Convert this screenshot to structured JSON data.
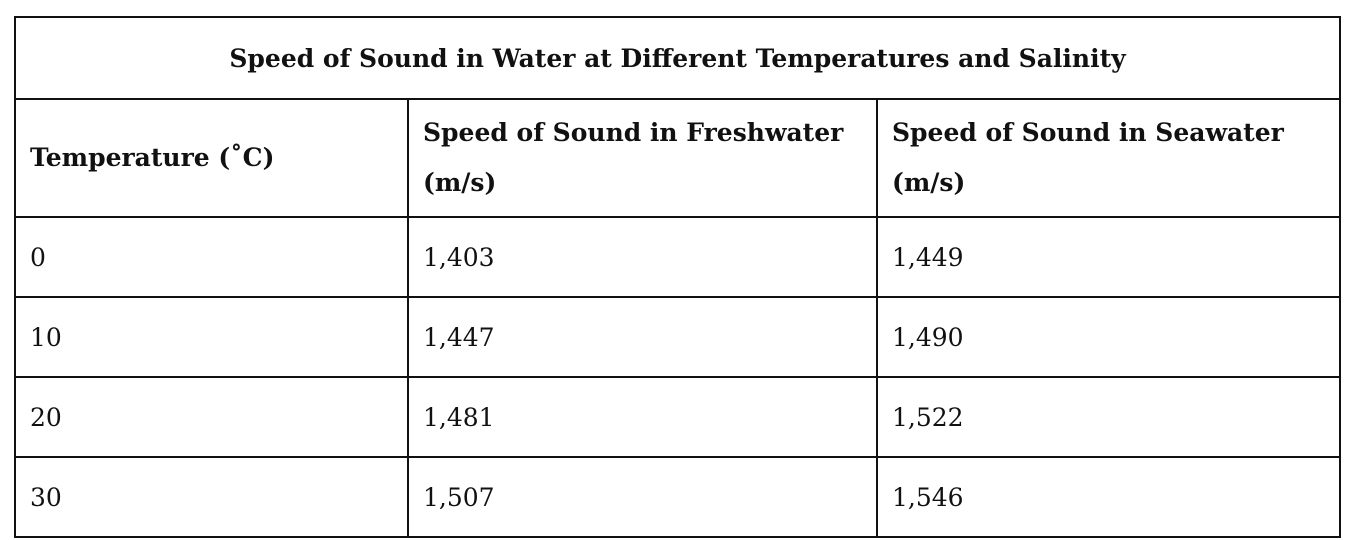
{
  "chart_data": {
    "type": "table",
    "title": "Speed of Sound in Water at Different Temperatures and Salinity",
    "columns": [
      "Temperature (˚C)",
      "Speed of Sound in Freshwater (m/s)",
      "Speed of Sound in Seawater (m/s)"
    ],
    "rows": [
      [
        "0",
        "1,403",
        "1,449"
      ],
      [
        "10",
        "1,447",
        "1,490"
      ],
      [
        "20",
        "1,481",
        "1,522"
      ],
      [
        "30",
        "1,507",
        "1,546"
      ]
    ],
    "x": [
      0,
      10,
      20,
      30
    ],
    "series": [
      {
        "name": "Speed of Sound in Freshwater (m/s)",
        "values": [
          1403,
          1447,
          1481,
          1507
        ]
      },
      {
        "name": "Speed of Sound in Seawater (m/s)",
        "values": [
          1449,
          1490,
          1522,
          1546
        ]
      }
    ]
  }
}
